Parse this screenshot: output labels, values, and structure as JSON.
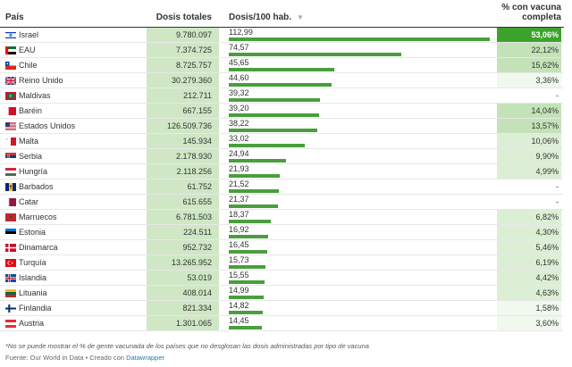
{
  "header": {
    "pais": "País",
    "dosis_totales": "Dosis totales",
    "dosis_100": "Dosis/100 hab.",
    "sort_icon": "▼",
    "vacuna_line1": "% con vacuna",
    "vacuna_line2": "completa"
  },
  "chart_data": {
    "type": "table",
    "columns": [
      "País",
      "Dosis totales",
      "Dosis/100 hab.",
      "% con vacuna completa"
    ],
    "bar_max": 112.99,
    "rows": [
      {
        "country": "Israel",
        "flag": "israel-flag",
        "dosis": "9.780.097",
        "per100": "112,99",
        "per100_num": 112.99,
        "vac": "53,06%",
        "vac_num": 53.06
      },
      {
        "country": "EAU",
        "flag": "uae-flag",
        "dosis": "7.374.725",
        "per100": "74,57",
        "per100_num": 74.57,
        "vac": "22,12%",
        "vac_num": 22.12
      },
      {
        "country": "Chile",
        "flag": "chile-flag",
        "dosis": "8.725.757",
        "per100": "45,65",
        "per100_num": 45.65,
        "vac": "15,62%",
        "vac_num": 15.62
      },
      {
        "country": "Reino Unido",
        "flag": "uk-flag",
        "dosis": "30.279.360",
        "per100": "44,60",
        "per100_num": 44.6,
        "vac": "3,36%",
        "vac_num": 3.36
      },
      {
        "country": "Maldivas",
        "flag": "maldives-flag",
        "dosis": "212.711",
        "per100": "39,32",
        "per100_num": 39.32,
        "vac": "-",
        "vac_num": null
      },
      {
        "country": "Baréin",
        "flag": "bahrain-flag",
        "dosis": "667.155",
        "per100": "39,20",
        "per100_num": 39.2,
        "vac": "14,04%",
        "vac_num": 14.04
      },
      {
        "country": "Estados Unidos",
        "flag": "usa-flag",
        "dosis": "126.509.736",
        "per100": "38,22",
        "per100_num": 38.22,
        "vac": "13,57%",
        "vac_num": 13.57
      },
      {
        "country": "Malta",
        "flag": "malta-flag",
        "dosis": "145.934",
        "per100": "33,02",
        "per100_num": 33.02,
        "vac": "10,06%",
        "vac_num": 10.06
      },
      {
        "country": "Serbia",
        "flag": "serbia-flag",
        "dosis": "2.178.930",
        "per100": "24,94",
        "per100_num": 24.94,
        "vac": "9,90%",
        "vac_num": 9.9
      },
      {
        "country": "Hungría",
        "flag": "hungary-flag",
        "dosis": "2.118.256",
        "per100": "21,93",
        "per100_num": 21.93,
        "vac": "4,99%",
        "vac_num": 4.99
      },
      {
        "country": "Barbados",
        "flag": "barbados-flag",
        "dosis": "61.752",
        "per100": "21,52",
        "per100_num": 21.52,
        "vac": "-",
        "vac_num": null
      },
      {
        "country": "Catar",
        "flag": "qatar-flag",
        "dosis": "615.655",
        "per100": "21,37",
        "per100_num": 21.37,
        "vac": "-",
        "vac_num": null
      },
      {
        "country": "Marruecos",
        "flag": "morocco-flag",
        "dosis": "6.781.503",
        "per100": "18,37",
        "per100_num": 18.37,
        "vac": "6,82%",
        "vac_num": 6.82
      },
      {
        "country": "Estonia",
        "flag": "estonia-flag",
        "dosis": "224.511",
        "per100": "16,92",
        "per100_num": 16.92,
        "vac": "4,30%",
        "vac_num": 4.3
      },
      {
        "country": "Dinamarca",
        "flag": "denmark-flag",
        "dosis": "952.732",
        "per100": "16,45",
        "per100_num": 16.45,
        "vac": "5,46%",
        "vac_num": 5.46
      },
      {
        "country": "Turquía",
        "flag": "turkey-flag",
        "dosis": "13.265.952",
        "per100": "15,73",
        "per100_num": 15.73,
        "vac": "6,19%",
        "vac_num": 6.19
      },
      {
        "country": "Islandia",
        "flag": "iceland-flag",
        "dosis": "53.019",
        "per100": "15,55",
        "per100_num": 15.55,
        "vac": "4,42%",
        "vac_num": 4.42
      },
      {
        "country": "Lituania",
        "flag": "lithuania-flag",
        "dosis": "408.014",
        "per100": "14,99",
        "per100_num": 14.99,
        "vac": "4,63%",
        "vac_num": 4.63
      },
      {
        "country": "Finlandia",
        "flag": "finland-flag",
        "dosis": "821.334",
        "per100": "14,82",
        "per100_num": 14.82,
        "vac": "1,58%",
        "vac_num": 1.58
      },
      {
        "country": "Austria",
        "flag": "austria-flag",
        "dosis": "1.301.065",
        "per100": "14,45",
        "per100_num": 14.45,
        "vac": "3,60%",
        "vac_num": 3.6
      }
    ]
  },
  "colors": {
    "bar": "#4a9e3d",
    "dose_cell": "#cfe7c5",
    "vac_max": "#3ba32a",
    "vac_high": "#c3e2b8",
    "vac_mid": "#dcefd5",
    "vac_low": "#f1f8ee"
  },
  "footer": {
    "note": "*No se puede mostrar el % de gente vacunada de los países que no desglosan las dosis administradas por tipo de vacuna",
    "source_prefix": "Fuente: Our World in Data • Creado con ",
    "source_link": "Datawrapper"
  }
}
